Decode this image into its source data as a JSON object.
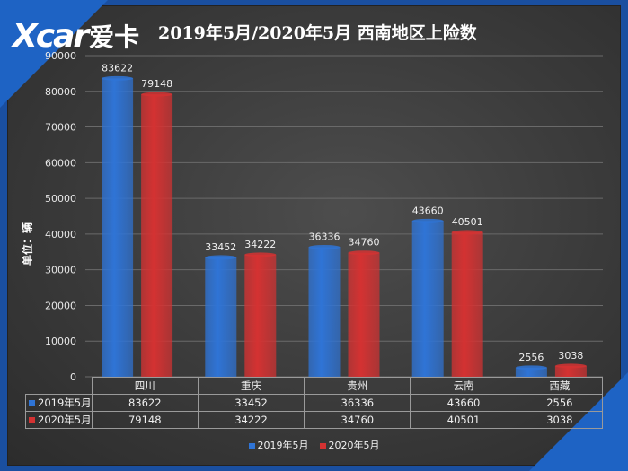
{
  "brand": {
    "latin": "Xcar",
    "chinese": "爱卡"
  },
  "chart_data": {
    "type": "bar",
    "title": "2019年5月/2020年5月 西南地区上险数",
    "ylabel": "单位：辆",
    "categories": [
      "四川",
      "重庆",
      "贵州",
      "云南",
      "西藏"
    ],
    "series": [
      {
        "name": "2019年5月",
        "values": [
          83622,
          33452,
          36336,
          43660,
          2556
        ],
        "color": "#2f74d6"
      },
      {
        "name": "2020年5月",
        "values": [
          79148,
          34222,
          34760,
          40501,
          3038
        ],
        "color": "#d43232"
      }
    ],
    "ylim": [
      0,
      90000
    ],
    "yticks": [
      "0",
      "10000",
      "20000",
      "30000",
      "40000",
      "50000",
      "60000",
      "70000",
      "80000",
      "90000"
    ],
    "grid": true,
    "legend": "bottom",
    "data_table": true
  }
}
